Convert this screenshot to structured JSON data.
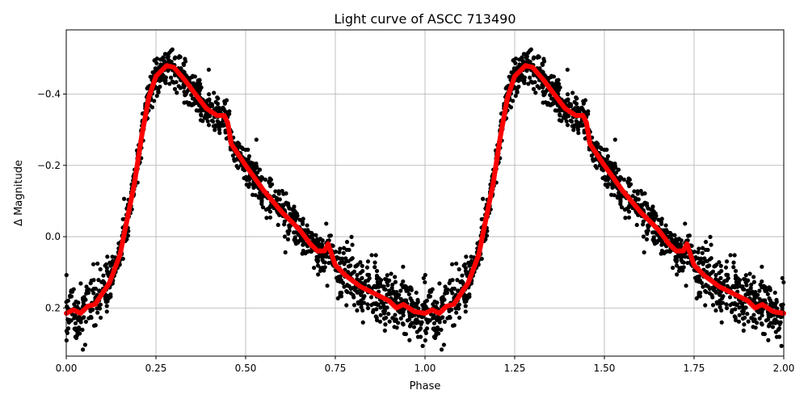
{
  "chart_data": {
    "type": "scatter",
    "title": "Light curve of ASCC 713490",
    "xlabel": "Phase",
    "ylabel": "Δ Magnitude",
    "xlim": [
      0.0,
      2.0
    ],
    "ylim": [
      0.335,
      -0.58
    ],
    "y_inverted": true,
    "grid": true,
    "xticks": [
      "0.00",
      "0.25",
      "0.50",
      "0.75",
      "1.00",
      "1.25",
      "1.50",
      "1.75",
      "2.00"
    ],
    "yticks": [
      "−0.4",
      "−0.2",
      "0.0",
      "0.2"
    ],
    "xtick_values": [
      0,
      0.25,
      0.5,
      0.75,
      1.0,
      1.25,
      1.5,
      1.75,
      2.0
    ],
    "ytick_values": [
      -0.4,
      -0.2,
      0.0,
      0.2
    ],
    "colors": {
      "observations": "#000000",
      "model": "#ff0000",
      "grid": "#b0b0b0"
    },
    "model_period_repeat": 2,
    "model": {
      "phase": [
        0,
        0.02,
        0.04,
        0.06,
        0.08,
        0.1,
        0.12,
        0.15,
        0.17,
        0.19,
        0.21,
        0.23,
        0.25,
        0.28,
        0.3,
        0.33,
        0.36,
        0.39,
        0.42,
        0.44,
        0.45,
        0.46,
        0.5,
        0.55,
        0.6,
        0.65,
        0.68,
        0.7,
        0.72,
        0.73,
        0.75,
        0.78,
        0.82,
        0.86,
        0.9,
        0.92,
        0.94,
        0.97,
        1.0
      ],
      "magnitude": [
        0.215,
        0.205,
        0.215,
        0.195,
        0.19,
        0.16,
        0.13,
        0.05,
        -0.05,
        -0.15,
        -0.28,
        -0.39,
        -0.45,
        -0.48,
        -0.475,
        -0.44,
        -0.4,
        -0.36,
        -0.34,
        -0.34,
        -0.32,
        -0.26,
        -0.2,
        -0.13,
        -0.07,
        -0.02,
        0.02,
        0.04,
        0.04,
        0.02,
        0.08,
        0.11,
        0.14,
        0.16,
        0.18,
        0.2,
        0.19,
        0.21,
        0.215
      ]
    }
  }
}
